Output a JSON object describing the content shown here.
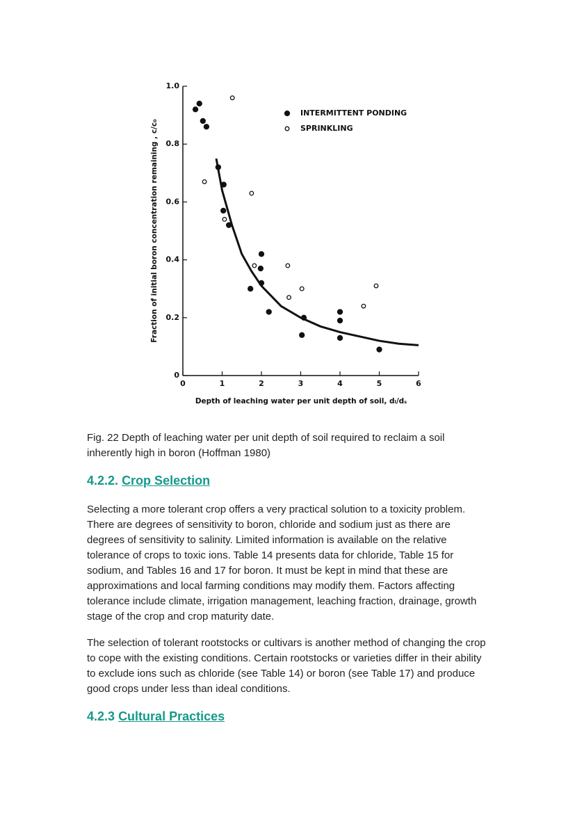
{
  "chart_data": {
    "type": "scatter",
    "xlabel": "Depth of leaching water per unit depth of soil, dₗ/dₛ",
    "ylabel": "Fraction of initial boron concentration remaining , c/c₀",
    "xlim": [
      0,
      6
    ],
    "ylim": [
      0,
      1
    ],
    "xticks": [
      0,
      1,
      2,
      3,
      4,
      5,
      6
    ],
    "yticks": [
      0,
      0.2,
      0.4,
      0.6,
      0.8,
      {
        "value": 1,
        "label": "1.0"
      }
    ],
    "legend": "upper right",
    "series": [
      {
        "name": "INTERMITTENT PONDING",
        "color": "#111111",
        "marker": "filled",
        "x": [
          0.32,
          0.42,
          0.51,
          0.6,
          0.9,
          1.04,
          1.03,
          1.17,
          2.0,
          1.98,
          1.72,
          2.0,
          2.19,
          3.08,
          3.03,
          4.0,
          4.0,
          4.0,
          5.0
        ],
        "values": [
          0.92,
          0.94,
          0.88,
          0.86,
          0.72,
          0.66,
          0.57,
          0.52,
          0.42,
          0.37,
          0.3,
          0.32,
          0.22,
          0.2,
          0.14,
          0.22,
          0.19,
          0.13,
          0.09
        ]
      },
      {
        "name": "SPRINKLING",
        "color": "#111111",
        "marker": "open",
        "x": [
          1.26,
          0.55,
          1.75,
          1.06,
          1.82,
          2.67,
          3.03,
          2.7,
          4.6,
          4.92
        ],
        "values": [
          0.96,
          0.67,
          0.63,
          0.54,
          0.38,
          0.38,
          0.3,
          0.27,
          0.24,
          0.31
        ]
      }
    ],
    "curve": {
      "color": "#111111",
      "x": [
        0.85,
        1,
        1.25,
        1.5,
        1.75,
        2,
        2.5,
        3,
        3.5,
        4,
        4.5,
        5,
        5.5,
        6
      ],
      "values": [
        0.75,
        0.64,
        0.52,
        0.42,
        0.36,
        0.31,
        0.24,
        0.2,
        0.17,
        0.15,
        0.135,
        0.12,
        0.11,
        0.105
      ]
    }
  },
  "caption": "Fig. 22 Depth of leaching water per unit depth of soil required to reclaim a soil inherently high in boron (Hoffman 1980)",
  "sections": [
    {
      "number": "4.2.2.",
      "title": "Crop Selection",
      "paragraphs": [
        "Selecting a more tolerant crop offers a very practical solution to a toxicity problem. There are degrees of sensitivity to boron, chloride and sodium just as there are degrees of sensitivity to salinity. Limited information is available on the relative tolerance of crops to toxic ions. Table 14 presents data for chloride, Table 15 for sodium, and Tables 16 and 17 for boron. It must be kept in mind that these are approximations and local farming conditions may modify them. Factors affecting tolerance include climate, irrigation management, leaching fraction, drainage, growth stage of the crop and crop maturity date.",
        "The selection of tolerant rootstocks or cultivars is another method of changing the crop to cope with the existing conditions. Certain rootstocks or varieties differ in their ability to exclude ions such as chloride (see Table 14) or boron (see Table 17) and produce good crops under less than ideal conditions."
      ]
    },
    {
      "number": "4.2.3",
      "title": "Cultural Practices"
    }
  ]
}
